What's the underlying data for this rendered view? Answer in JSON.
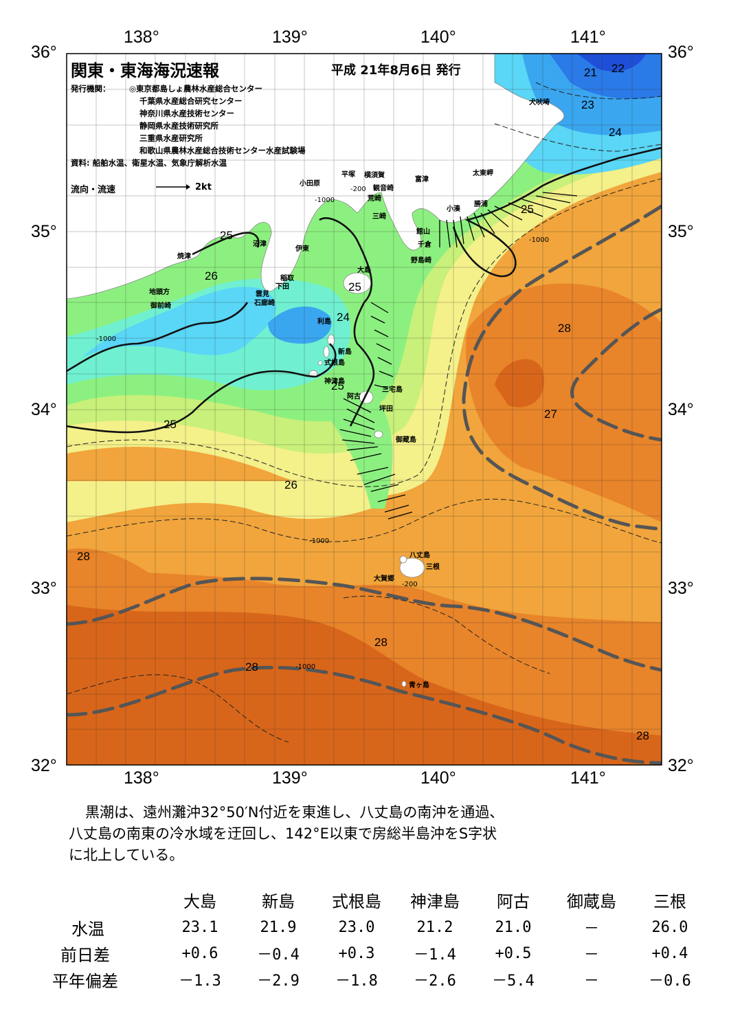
{
  "map": {
    "title": "関東・東海海況速報",
    "date": "平成 21年8月6日 発行",
    "publisher_label": "発行機関：",
    "publishers": [
      "◎東京都島しょ農林水産総合センター",
      "千葉県水産総合研究センター",
      "神奈川県水産技術センター",
      "静岡県水産技術研究所",
      "三重県水産研究所",
      "和歌山県農林水産総合技術センター水産試験場"
    ],
    "source": "資料: 船舶水温、衛星水温、気象庁解析水温",
    "flow_legend_label": "流向・流速",
    "flow_legend_value": "2kt",
    "lon_labels": [
      "138°",
      "139°",
      "140°",
      "141°"
    ],
    "lat_labels": [
      "36°",
      "35°",
      "34°",
      "33°",
      "32°"
    ],
    "place_labels": [
      "焼津",
      "沼津",
      "伊東",
      "小田原",
      "平塚",
      "横須賀",
      "観音崎",
      "荒崎",
      "三崎",
      "富津",
      "館山",
      "千倉",
      "野島崎",
      "小湊",
      "勝浦",
      "太東岬",
      "犬吠埼",
      "地頭方",
      "御前崎",
      "稲取",
      "下田",
      "雲見",
      "石廊崎",
      "大島",
      "利島",
      "新島",
      "式根島",
      "神津島",
      "三宅島",
      "坪田",
      "阿古",
      "御蔵島",
      "八丈島",
      "三根",
      "大賀郷",
      "青ヶ島"
    ],
    "temp_labels": [
      "21",
      "22",
      "23",
      "24",
      "25",
      "25",
      "26",
      "25",
      "24",
      "25",
      "25",
      "26",
      "28",
      "27",
      "28",
      "28",
      "28",
      "28"
    ],
    "depth_labels": [
      "-200",
      "-1000"
    ],
    "colors": {
      "t20": "#1e4fd6",
      "t21": "#2a7ae8",
      "t22": "#3aa6f0",
      "t23": "#5ad6f6",
      "t24": "#70f0d0",
      "t25": "#8cf080",
      "t26": "#c8f07a",
      "t26b": "#f4f08a",
      "t27": "#f5d060",
      "t27b": "#f1a53c",
      "t28": "#e8842a",
      "t29": "#d8661a",
      "land": "#ffffff",
      "kuroshio": "#555555"
    }
  },
  "narrative": [
    "黒潮は、遠州灘沖32°50′N付近を東進し、八丈島の南沖を通過、",
    "八丈島の南東の冷水域を迂回し、142°E以東で房総半島沖をS字状",
    "に北上している。"
  ],
  "table": {
    "stations": [
      "大島",
      "新島",
      "式根島",
      "神津島",
      "阿古",
      "御蔵島",
      "三根"
    ],
    "rows": [
      {
        "label": "水温",
        "values": [
          "23.1",
          "21.9",
          "23.0",
          "21.2",
          "21.0",
          "－",
          "26.0"
        ]
      },
      {
        "label": "前日差",
        "values": [
          "+0.6",
          "－0.4",
          "+0.3",
          "－1.4",
          "+0.5",
          "－",
          "+0.4"
        ]
      },
      {
        "label": "平年偏差",
        "values": [
          "－1.3",
          "－2.9",
          "－1.8",
          "－2.6",
          "－5.4",
          "－",
          "－0.6"
        ]
      }
    ]
  }
}
